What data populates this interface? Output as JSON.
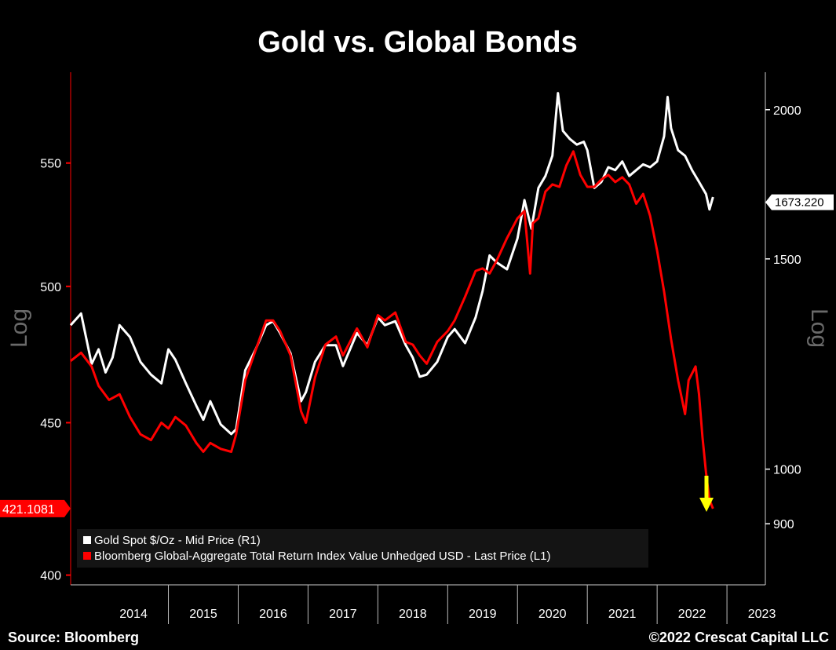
{
  "chart_data": {
    "type": "line",
    "title": "Gold vs. Global Bonds",
    "source": "Source: Bloomberg",
    "copyright": "©2022 Crescat Capital LLC",
    "left_axis": {
      "label": "Log",
      "scale": "log",
      "ticks": [
        400,
        450,
        500,
        550
      ],
      "tick_labels": [
        "400",
        "450",
        "500",
        "550"
      ],
      "range": [
        397,
        590
      ],
      "last_value_label": "421.1081",
      "last_value": 421.1081,
      "color": "#ff0000"
    },
    "right_axis": {
      "label": "Log",
      "scale": "log",
      "ticks": [
        900,
        1000,
        1500,
        2000
      ],
      "tick_labels": [
        "900",
        "1000",
        "1500",
        "2000"
      ],
      "range": [
        800,
        2150
      ],
      "last_value_label": "1673.220",
      "last_value": 1673.22,
      "color": "#ffffff"
    },
    "x_axis": {
      "categories": [
        "2014",
        "2015",
        "2016",
        "2017",
        "2018",
        "2019",
        "2020",
        "2021",
        "2022",
        "2023"
      ]
    },
    "legend": {
      "placement": "bottom-left",
      "entries": [
        {
          "label": "Gold Spot $/Oz - Mid Price (R1)",
          "color": "#ffffff"
        },
        {
          "label": "Bloomberg Global-Aggregate Total Return Index Value Unhedged USD - Last Price (L1)",
          "color": "#ff0000"
        }
      ]
    },
    "series": [
      {
        "name": "Gold Spot $/Oz - Mid Price (R1)",
        "axis": "right",
        "color": "#ffffff",
        "x": [
          2013.6,
          2013.75,
          2013.9,
          2014.0,
          2014.1,
          2014.2,
          2014.3,
          2014.45,
          2014.6,
          2014.75,
          2014.9,
          2015.0,
          2015.1,
          2015.25,
          2015.4,
          2015.5,
          2015.6,
          2015.75,
          2015.9,
          2015.97,
          2016.1,
          2016.25,
          2016.4,
          2016.5,
          2016.6,
          2016.75,
          2016.9,
          2016.97,
          2017.1,
          2017.25,
          2017.4,
          2017.5,
          2017.7,
          2017.85,
          2018.0,
          2018.1,
          2018.25,
          2018.4,
          2018.5,
          2018.6,
          2018.7,
          2018.85,
          2019.0,
          2019.1,
          2019.25,
          2019.4,
          2019.5,
          2019.6,
          2019.7,
          2019.85,
          2020.0,
          2020.1,
          2020.2,
          2020.3,
          2020.4,
          2020.5,
          2020.58,
          2020.65,
          2020.75,
          2020.85,
          2020.95,
          2021.0,
          2021.1,
          2021.2,
          2021.3,
          2021.4,
          2021.5,
          2021.6,
          2021.7,
          2021.8,
          2021.9,
          2022.0,
          2022.1,
          2022.15,
          2022.2,
          2022.3,
          2022.4,
          2022.5,
          2022.6,
          2022.7,
          2022.75,
          2022.8
        ],
        "y": [
          1320,
          1350,
          1225,
          1260,
          1205,
          1240,
          1320,
          1290,
          1230,
          1200,
          1180,
          1260,
          1235,
          1180,
          1130,
          1100,
          1140,
          1090,
          1070,
          1080,
          1210,
          1260,
          1320,
          1330,
          1300,
          1250,
          1140,
          1160,
          1230,
          1270,
          1270,
          1220,
          1300,
          1270,
          1340,
          1320,
          1330,
          1270,
          1240,
          1195,
          1200,
          1230,
          1290,
          1310,
          1275,
          1340,
          1410,
          1510,
          1490,
          1470,
          1560,
          1680,
          1590,
          1720,
          1760,
          1830,
          2065,
          1920,
          1890,
          1870,
          1880,
          1850,
          1720,
          1740,
          1790,
          1780,
          1810,
          1760,
          1780,
          1800,
          1790,
          1810,
          1900,
          2050,
          1930,
          1850,
          1830,
          1780,
          1740,
          1700,
          1650,
          1690
        ]
      },
      {
        "name": "Bloomberg Global-Aggregate Total Return Index Value Unhedged USD - Last Price (L1)",
        "axis": "left",
        "color": "#ff0000",
        "x": [
          2013.6,
          2013.75,
          2013.9,
          2014.0,
          2014.15,
          2014.3,
          2014.45,
          2014.6,
          2014.75,
          2014.9,
          2015.0,
          2015.1,
          2015.25,
          2015.4,
          2015.5,
          2015.6,
          2015.75,
          2015.9,
          2015.97,
          2016.1,
          2016.25,
          2016.4,
          2016.5,
          2016.6,
          2016.75,
          2016.9,
          2016.97,
          2017.1,
          2017.25,
          2017.4,
          2017.5,
          2017.7,
          2017.85,
          2018.0,
          2018.1,
          2018.25,
          2018.4,
          2018.5,
          2018.6,
          2018.7,
          2018.85,
          2019.0,
          2019.1,
          2019.25,
          2019.4,
          2019.5,
          2019.6,
          2019.7,
          2019.85,
          2020.0,
          2020.1,
          2020.18,
          2020.22,
          2020.3,
          2020.4,
          2020.5,
          2020.6,
          2020.7,
          2020.8,
          2020.9,
          2021.0,
          2021.1,
          2021.2,
          2021.3,
          2021.4,
          2021.5,
          2021.6,
          2021.7,
          2021.8,
          2021.9,
          2022.0,
          2022.1,
          2022.2,
          2022.3,
          2022.4,
          2022.45,
          2022.55,
          2022.6,
          2022.65,
          2022.7,
          2022.75,
          2022.8
        ],
        "y": [
          472,
          475,
          470,
          463,
          458,
          460,
          452,
          446,
          444,
          450,
          448,
          452,
          449,
          443,
          440,
          443,
          441,
          440,
          446,
          465,
          476,
          487,
          487,
          483,
          474,
          454,
          450,
          466,
          478,
          481,
          474,
          484,
          477,
          489,
          487,
          490,
          479,
          478,
          474,
          471,
          479,
          483,
          487,
          496,
          506,
          507,
          505,
          510,
          519,
          527,
          530,
          505,
          525,
          527,
          538,
          541,
          540,
          549,
          555,
          545,
          540,
          540,
          543,
          545,
          542,
          544,
          541,
          533,
          537,
          528,
          514,
          498,
          480,
          465,
          453,
          465,
          470,
          460,
          445,
          433,
          424,
          421.1
        ]
      }
    ]
  }
}
